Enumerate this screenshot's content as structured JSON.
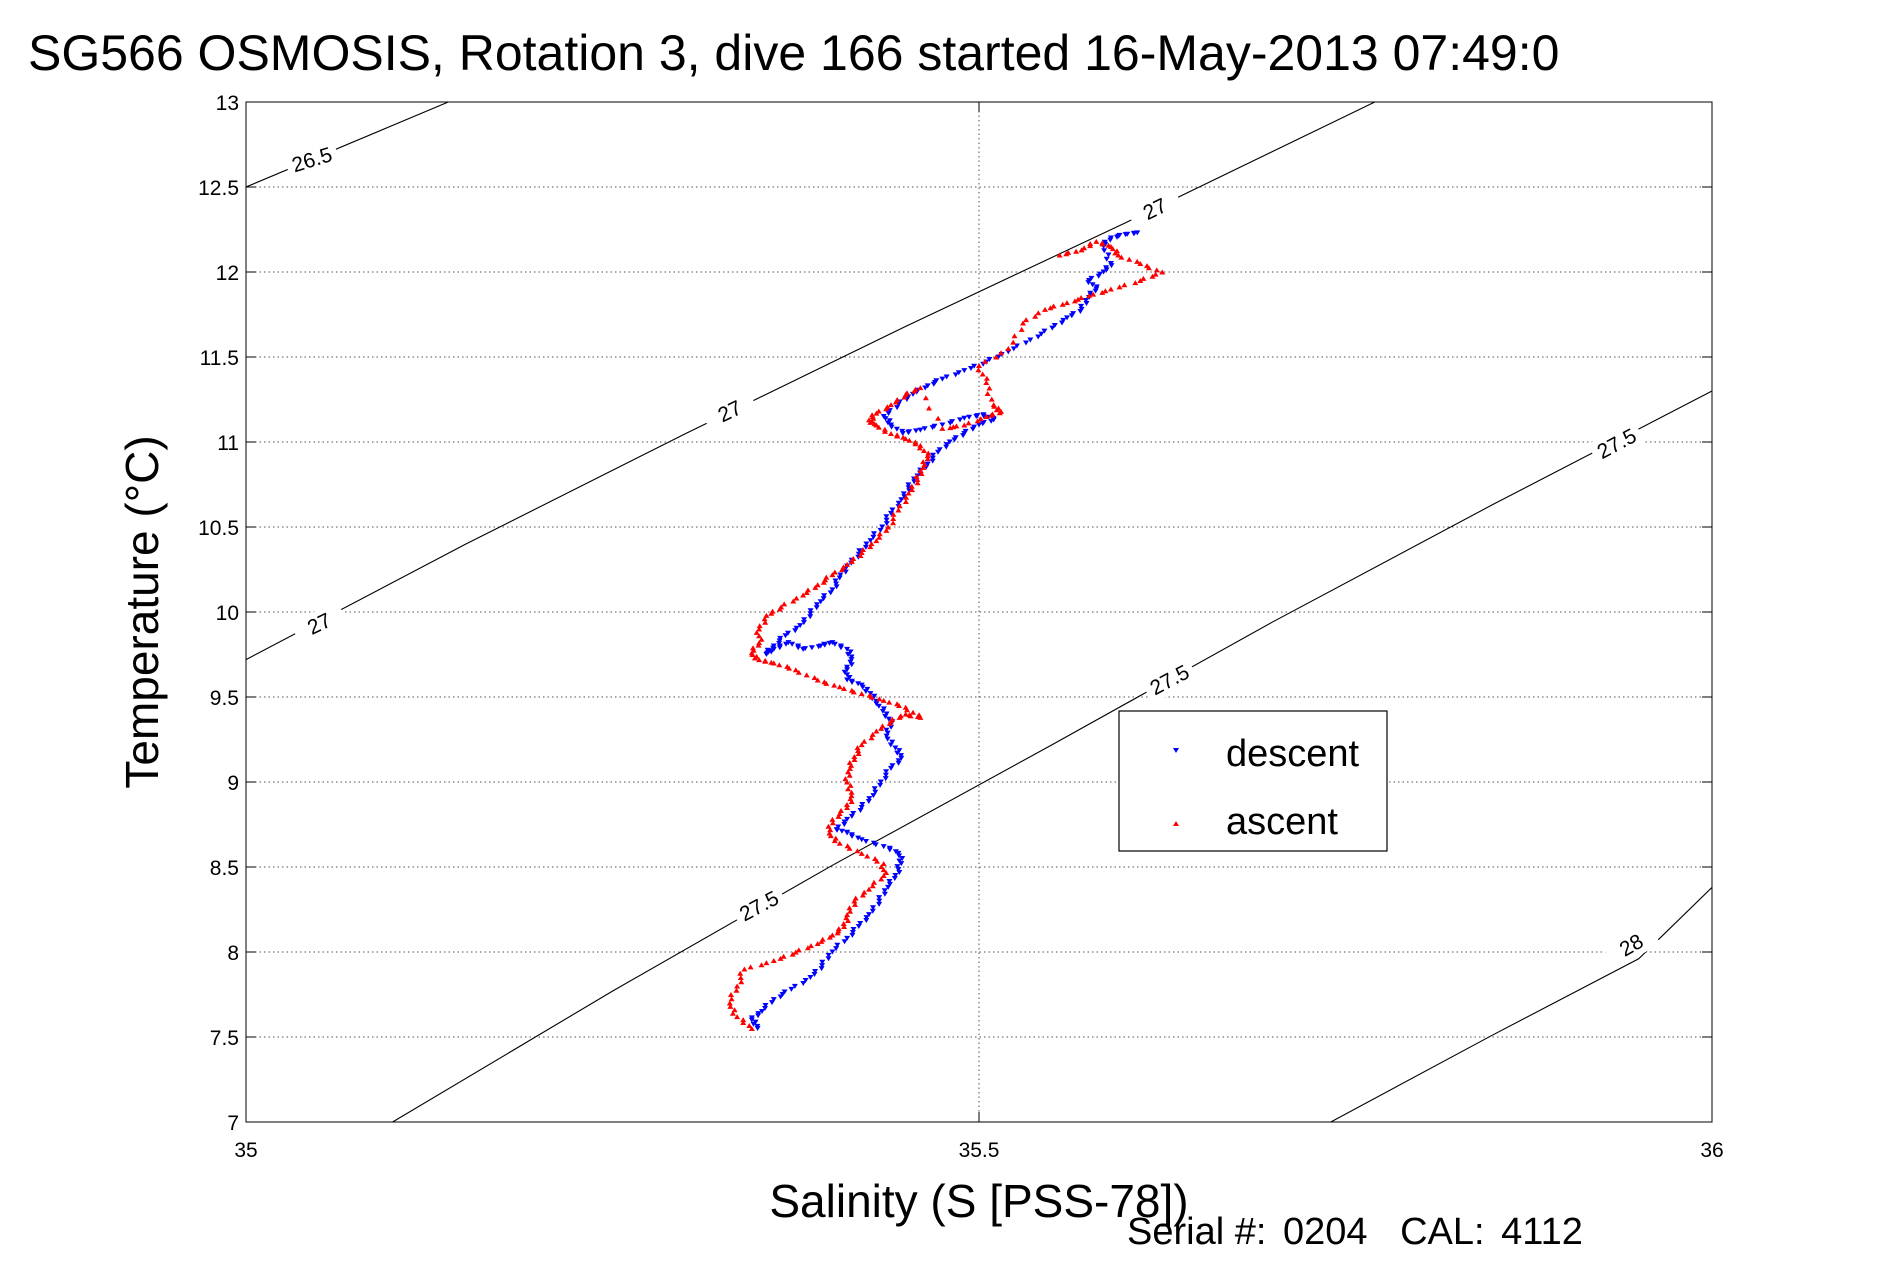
{
  "chart_data": {
    "type": "scatter",
    "title": "SG566 OSMOSIS, Rotation 3, dive 166 started 16-May-2013 07:49:0",
    "xlabel": "Salinity (S [PSS-78])",
    "ylabel": "Temperature (°C)",
    "xlim": [
      35,
      36
    ],
    "ylim": [
      7,
      13
    ],
    "x_ticks": [
      {
        "value": 35,
        "label": "35"
      },
      {
        "value": 35.5,
        "label": "35.5"
      },
      {
        "value": 36,
        "label": "36"
      }
    ],
    "y_ticks": [
      {
        "value": 7,
        "label": "7"
      },
      {
        "value": 7.5,
        "label": "7.5"
      },
      {
        "value": 8,
        "label": "8"
      },
      {
        "value": 8.5,
        "label": "8.5"
      },
      {
        "value": 9,
        "label": "9"
      },
      {
        "value": 9.5,
        "label": "9.5"
      },
      {
        "value": 10,
        "label": "10"
      },
      {
        "value": 10.5,
        "label": "10.5"
      },
      {
        "value": 11,
        "label": "11"
      },
      {
        "value": 11.5,
        "label": "11.5"
      },
      {
        "value": 12,
        "label": "12"
      },
      {
        "value": 12.5,
        "label": "12.5"
      },
      {
        "value": 13,
        "label": "13"
      }
    ],
    "x_grid": [
      35.5
    ],
    "y_grid": [
      7.5,
      8,
      8.5,
      9,
      9.5,
      10,
      10.5,
      11,
      11.5,
      12,
      12.5
    ],
    "grid": true,
    "legend_position": "right",
    "isopycnals": [
      {
        "label": "26.5",
        "points": [
          [
            35.0,
            12.5
          ],
          [
            35.138,
            13.0
          ]
        ],
        "labels": [
          {
            "text": "26.5",
            "x": 35.045,
            "y": 12.66,
            "angle": -17
          }
        ]
      },
      {
        "label": "27",
        "points": [
          [
            35.0,
            9.72
          ],
          [
            35.15,
            10.4
          ],
          [
            35.3,
            11.05
          ],
          [
            35.45,
            11.68
          ],
          [
            35.6,
            12.29
          ],
          [
            35.77,
            13.0
          ]
        ],
        "labels": [
          {
            "text": "27",
            "x": 35.05,
            "y": 9.93,
            "angle": -26
          },
          {
            "text": "27",
            "x": 35.33,
            "y": 11.18,
            "angle": -26
          },
          {
            "text": "27",
            "x": 35.62,
            "y": 12.37,
            "angle": -26
          }
        ]
      },
      {
        "label": "27.5",
        "points": [
          [
            35.1,
            7.0
          ],
          [
            35.25,
            7.77
          ],
          [
            35.4,
            8.51
          ],
          [
            35.55,
            9.22
          ],
          [
            35.7,
            9.94
          ],
          [
            35.85,
            10.63
          ],
          [
            36.0,
            11.3
          ]
        ],
        "labels": [
          {
            "text": "27.5",
            "x": 35.35,
            "y": 8.27,
            "angle": -28
          },
          {
            "text": "27.5",
            "x": 35.63,
            "y": 9.6,
            "angle": -28
          },
          {
            "text": "27.5",
            "x": 35.935,
            "y": 10.99,
            "angle": -28
          }
        ]
      },
      {
        "label": "28",
        "points": [
          [
            35.74,
            7.0
          ],
          [
            35.85,
            7.51
          ],
          [
            35.95,
            7.96
          ],
          [
            36.0,
            8.38
          ]
        ],
        "labels": [
          {
            "text": "28",
            "x": 35.945,
            "y": 8.04,
            "angle": -30
          }
        ]
      }
    ],
    "series": [
      {
        "name": "descent",
        "color": "#0000ff",
        "marker": "triangle-down",
        "points": [
          [
            35.349,
            7.55
          ],
          [
            35.345,
            7.6
          ],
          [
            35.352,
            7.65
          ],
          [
            35.36,
            7.72
          ],
          [
            35.372,
            7.78
          ],
          [
            35.385,
            7.85
          ],
          [
            35.393,
            7.92
          ],
          [
            35.4,
            8.0
          ],
          [
            35.41,
            8.08
          ],
          [
            35.418,
            8.15
          ],
          [
            35.425,
            8.22
          ],
          [
            35.432,
            8.3
          ],
          [
            35.438,
            8.38
          ],
          [
            35.443,
            8.45
          ],
          [
            35.447,
            8.52
          ],
          [
            35.445,
            8.58
          ],
          [
            35.435,
            8.62
          ],
          [
            35.42,
            8.66
          ],
          [
            35.41,
            8.7
          ],
          [
            35.403,
            8.72
          ],
          [
            35.41,
            8.78
          ],
          [
            35.42,
            8.85
          ],
          [
            35.428,
            8.92
          ],
          [
            35.433,
            9.0
          ],
          [
            35.44,
            9.08
          ],
          [
            35.447,
            9.14
          ],
          [
            35.443,
            9.2
          ],
          [
            35.437,
            9.27
          ],
          [
            35.44,
            9.34
          ],
          [
            35.437,
            9.4
          ],
          [
            35.43,
            9.46
          ],
          [
            35.426,
            9.52
          ],
          [
            35.42,
            9.57
          ],
          [
            35.41,
            9.6
          ],
          [
            35.41,
            9.66
          ],
          [
            35.413,
            9.72
          ],
          [
            35.41,
            9.78
          ],
          [
            35.4,
            9.82
          ],
          [
            35.392,
            9.8
          ],
          [
            35.38,
            9.78
          ],
          [
            35.37,
            9.82
          ],
          [
            35.36,
            9.78
          ],
          [
            35.355,
            9.75
          ],
          [
            35.36,
            9.8
          ],
          [
            35.368,
            9.86
          ],
          [
            35.378,
            9.92
          ],
          [
            35.385,
            9.99
          ],
          [
            35.392,
            10.06
          ],
          [
            35.4,
            10.13
          ],
          [
            35.405,
            10.2
          ],
          [
            35.41,
            10.27
          ],
          [
            35.418,
            10.34
          ],
          [
            35.426,
            10.42
          ],
          [
            35.434,
            10.5
          ],
          [
            35.44,
            10.58
          ],
          [
            35.447,
            10.66
          ],
          [
            35.452,
            10.73
          ],
          [
            35.458,
            10.8
          ],
          [
            35.465,
            10.87
          ],
          [
            35.472,
            10.94
          ],
          [
            35.48,
            11.0
          ],
          [
            35.49,
            11.05
          ],
          [
            35.5,
            11.1
          ],
          [
            35.51,
            11.13
          ],
          [
            35.503,
            11.16
          ],
          [
            35.49,
            11.14
          ],
          [
            35.475,
            11.1
          ],
          [
            35.46,
            11.07
          ],
          [
            35.448,
            11.05
          ],
          [
            35.44,
            11.1
          ],
          [
            35.435,
            11.15
          ],
          [
            35.445,
            11.22
          ],
          [
            35.455,
            11.28
          ],
          [
            35.465,
            11.33
          ],
          [
            35.475,
            11.37
          ],
          [
            35.49,
            11.42
          ],
          [
            35.505,
            11.47
          ],
          [
            35.52,
            11.53
          ],
          [
            35.535,
            11.6
          ],
          [
            35.55,
            11.67
          ],
          [
            35.56,
            11.73
          ],
          [
            35.57,
            11.78
          ],
          [
            35.575,
            11.85
          ],
          [
            35.58,
            11.9
          ],
          [
            35.575,
            11.95
          ],
          [
            35.585,
            12.0
          ],
          [
            35.59,
            12.05
          ],
          [
            35.585,
            12.15
          ],
          [
            35.59,
            12.2
          ],
          [
            35.6,
            12.22
          ],
          [
            35.608,
            12.23
          ]
        ]
      },
      {
        "name": "ascent",
        "color": "#ff0000",
        "marker": "triangle-up",
        "points": [
          [
            35.345,
            7.55
          ],
          [
            35.335,
            7.62
          ],
          [
            35.33,
            7.7
          ],
          [
            35.335,
            7.8
          ],
          [
            35.34,
            7.9
          ],
          [
            35.36,
            7.95
          ],
          [
            35.375,
            8.0
          ],
          [
            35.39,
            8.05
          ],
          [
            35.4,
            8.1
          ],
          [
            35.408,
            8.15
          ],
          [
            35.41,
            8.22
          ],
          [
            35.415,
            8.3
          ],
          [
            35.425,
            8.37
          ],
          [
            35.435,
            8.45
          ],
          [
            35.435,
            8.52
          ],
          [
            35.42,
            8.58
          ],
          [
            35.405,
            8.64
          ],
          [
            35.398,
            8.7
          ],
          [
            35.4,
            8.78
          ],
          [
            35.41,
            8.85
          ],
          [
            35.413,
            8.92
          ],
          [
            35.41,
            9.0
          ],
          [
            35.412,
            9.08
          ],
          [
            35.415,
            9.15
          ],
          [
            35.42,
            9.22
          ],
          [
            35.43,
            9.3
          ],
          [
            35.44,
            9.36
          ],
          [
            35.45,
            9.4
          ],
          [
            35.46,
            9.38
          ],
          [
            35.45,
            9.44
          ],
          [
            35.435,
            9.48
          ],
          [
            35.42,
            9.52
          ],
          [
            35.405,
            9.56
          ],
          [
            35.39,
            9.6
          ],
          [
            35.375,
            9.66
          ],
          [
            35.36,
            9.7
          ],
          [
            35.35,
            9.72
          ],
          [
            35.345,
            9.76
          ],
          [
            35.35,
            9.82
          ],
          [
            35.35,
            9.9
          ],
          [
            35.355,
            9.98
          ],
          [
            35.365,
            10.03
          ],
          [
            35.38,
            10.1
          ],
          [
            35.39,
            10.16
          ],
          [
            35.4,
            10.22
          ],
          [
            35.41,
            10.28
          ],
          [
            35.42,
            10.35
          ],
          [
            35.43,
            10.42
          ],
          [
            35.438,
            10.5
          ],
          [
            35.445,
            10.6
          ],
          [
            35.452,
            10.7
          ],
          [
            35.458,
            10.78
          ],
          [
            35.462,
            10.85
          ],
          [
            35.465,
            10.92
          ],
          [
            35.46,
            10.98
          ],
          [
            35.45,
            11.02
          ],
          [
            35.44,
            11.05
          ],
          [
            35.43,
            11.1
          ],
          [
            35.425,
            11.13
          ],
          [
            35.43,
            11.17
          ],
          [
            35.44,
            11.22
          ],
          [
            35.45,
            11.28
          ],
          [
            35.46,
            11.32
          ],
          [
            35.475,
            11.08
          ],
          [
            35.49,
            11.1
          ],
          [
            35.505,
            11.15
          ],
          [
            35.515,
            11.18
          ],
          [
            35.51,
            11.22
          ],
          [
            35.505,
            11.35
          ],
          [
            35.5,
            11.45
          ],
          [
            35.52,
            11.55
          ],
          [
            35.53,
            11.7
          ],
          [
            35.545,
            11.78
          ],
          [
            35.56,
            11.82
          ],
          [
            35.575,
            11.86
          ],
          [
            35.59,
            11.9
          ],
          [
            35.61,
            11.95
          ],
          [
            35.625,
            12.0
          ],
          [
            35.61,
            12.05
          ],
          [
            35.595,
            12.1
          ],
          [
            35.59,
            12.15
          ],
          [
            35.58,
            12.18
          ],
          [
            35.57,
            12.13
          ],
          [
            35.555,
            12.1
          ]
        ]
      }
    ]
  },
  "footer": {
    "serial_label": "Serial #:",
    "serial_value": "0204",
    "cal_label": "CAL:",
    "cal_value": "4112"
  }
}
